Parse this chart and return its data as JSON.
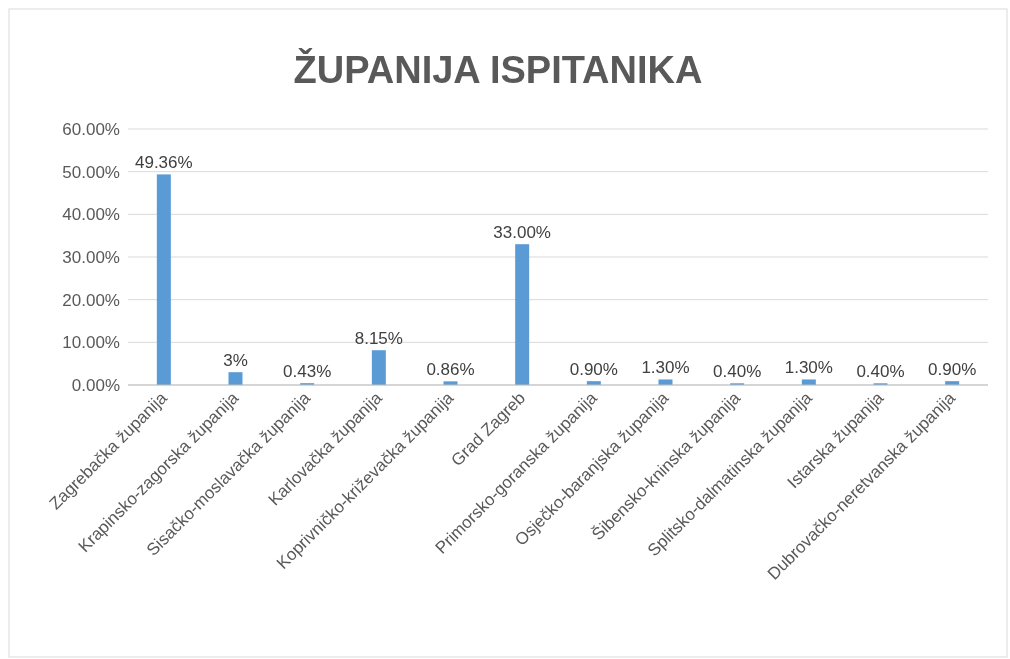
{
  "chart_data": {
    "type": "bar",
    "title": "ŽUPANIJA ISPITANIKA",
    "categories": [
      "Zagrebačka županija",
      "Krapinsko-zagorska županija",
      "Sisačko-moslavačka županija",
      "Karlovačka županija",
      "Koprivničko-križevačka županija",
      "Grad Zagreb",
      "Primorsko-goranska županija",
      "Osječko-baranjska županija",
      "Šibensko-kninska županija",
      "Splitsko-dalmatinska županija",
      "Istarska županija",
      "Dubrovačko-neretvanska županija"
    ],
    "values": [
      49.36,
      3,
      0.43,
      8.15,
      0.86,
      33.0,
      0.9,
      1.3,
      0.4,
      1.3,
      0.4,
      0.9
    ],
    "value_labels": [
      "49.36%",
      "3%",
      "0.43%",
      "8.15%",
      "0.86%",
      "33.00%",
      "0.90%",
      "1.30%",
      "0.40%",
      "1.30%",
      "0.40%",
      "0.90%"
    ],
    "color": "#5b9bd5",
    "ylim": [
      0,
      60
    ],
    "yticks": [
      {
        "value": 0,
        "label": "0.00%"
      },
      {
        "value": 10,
        "label": "10.00%"
      },
      {
        "value": 20,
        "label": "20.00%"
      },
      {
        "value": 30,
        "label": "30.00%"
      },
      {
        "value": 40,
        "label": "40.00%"
      },
      {
        "value": 50,
        "label": "50.00%"
      },
      {
        "value": 60,
        "label": "60.00%"
      }
    ],
    "grid": true
  }
}
